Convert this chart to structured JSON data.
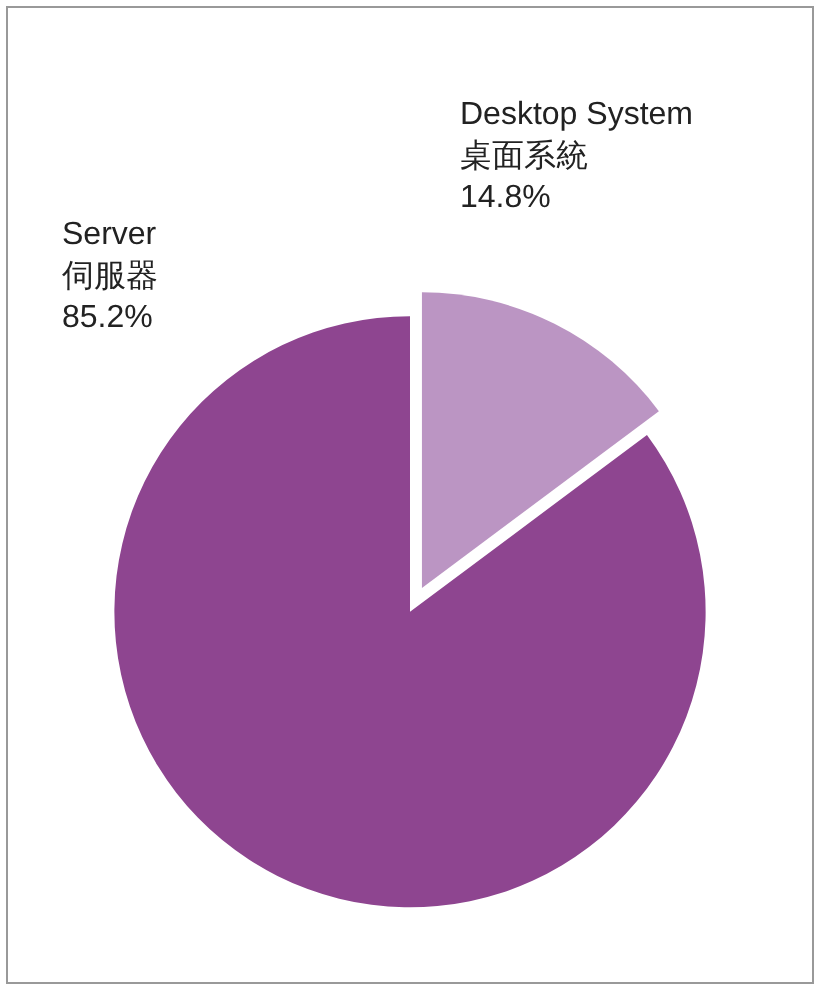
{
  "chart_data": {
    "type": "pie",
    "categories": [
      "Desktop System\n桌面系統",
      "Server\n伺服器"
    ],
    "values": [
      14.8,
      85.2
    ],
    "value_labels": [
      "14.8%",
      "85.2%"
    ],
    "colors": [
      "#bb95c3",
      "#8e4590"
    ],
    "legend": false
  }
}
